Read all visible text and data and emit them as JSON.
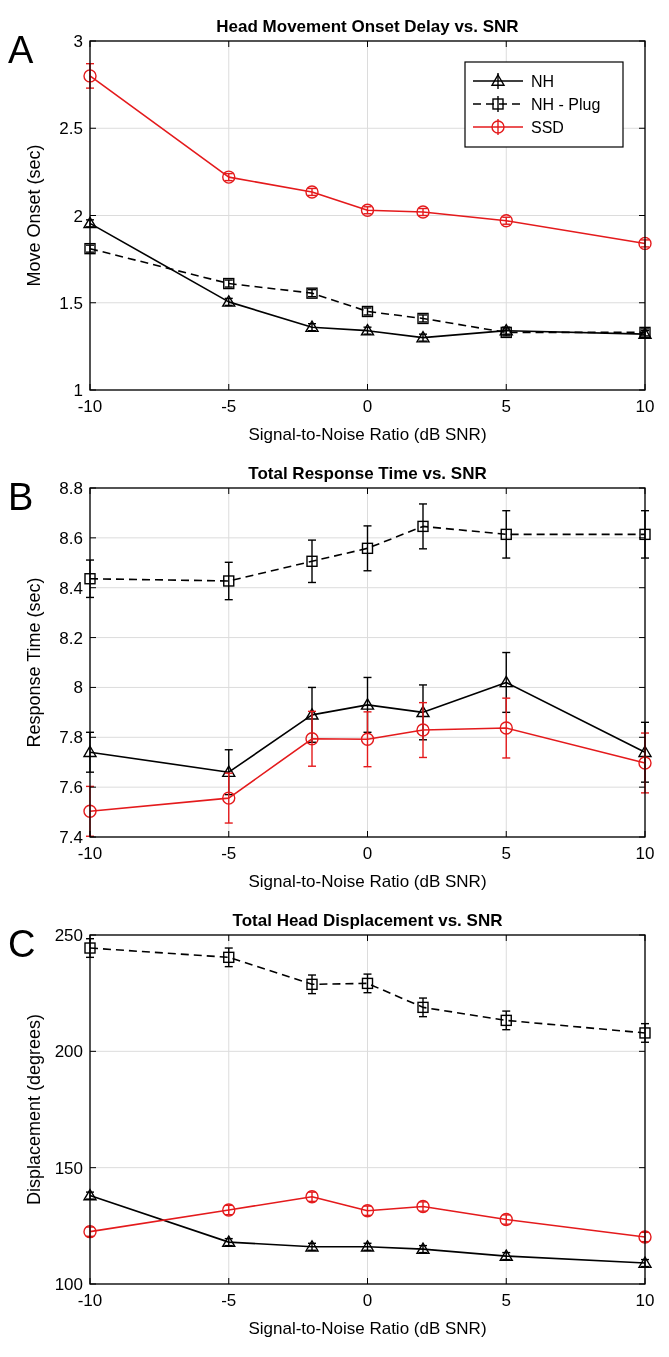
{
  "chart_data": [
    {
      "type": "line",
      "title": "Head Movement Onset Delay vs. SNR",
      "xlabel": "Signal-to-Noise Ratio (dB SNR)",
      "ylabel": "Move Onset (sec)",
      "annotations": [
        "A"
      ],
      "x": [
        -10,
        -5,
        -2,
        0,
        2,
        5,
        10
      ],
      "xlim": [
        -10,
        10
      ],
      "xticks": [
        -10,
        -5,
        0,
        5,
        10
      ],
      "ylim": [
        1,
        3
      ],
      "yticks": [
        1,
        1.5,
        2,
        2.5,
        3
      ],
      "grid": true,
      "legend": "top right",
      "series": [
        {
          "name": "NH",
          "color": "#000000",
          "marker": "triangle",
          "line_style": "solid",
          "values": [
            1.955,
            1.505,
            1.36,
            1.34,
            1.3,
            1.34,
            1.32
          ],
          "errors": [
            0.02,
            0.02,
            0.02,
            0.02,
            0.02,
            0.02,
            0.02
          ]
        },
        {
          "name": "NH - Plug",
          "color": "#000000",
          "marker": "square",
          "line_style": "dashed",
          "values": [
            1.81,
            1.61,
            1.555,
            1.45,
            1.41,
            1.33,
            1.33
          ],
          "errors": [
            0.02,
            0.02,
            0.02,
            0.02,
            0.02,
            0.02,
            0.02
          ]
        },
        {
          "name": "SSD",
          "color": "#e41a1c",
          "marker": "circle",
          "line_style": "solid",
          "values": [
            2.8,
            2.22,
            2.135,
            2.03,
            2.02,
            1.97,
            1.84
          ],
          "errors": [
            0.07,
            0.02,
            0.02,
            0.02,
            0.02,
            0.02,
            0.02
          ]
        }
      ]
    },
    {
      "type": "line",
      "title": "Total Response Time vs. SNR",
      "xlabel": "Signal-to-Noise Ratio (dB SNR)",
      "ylabel": "Response Time (sec)",
      "annotations": [
        "B"
      ],
      "x": [
        -10,
        -5,
        -2,
        0,
        2,
        5,
        10
      ],
      "xlim": [
        -10,
        10
      ],
      "xticks": [
        -10,
        -5,
        0,
        5,
        10
      ],
      "ylim": [
        7.4,
        8.8
      ],
      "yticks": [
        7.4,
        7.6,
        7.8,
        8,
        8.2,
        8.4,
        8.6,
        8.8
      ],
      "grid": true,
      "series": [
        {
          "color": "#000000",
          "marker": "triangle",
          "line_style": "solid",
          "values": [
            7.74,
            7.66,
            7.89,
            7.93,
            7.9,
            8.02,
            7.74
          ],
          "errors": [
            0.08,
            0.09,
            0.11,
            0.11,
            0.11,
            0.12,
            0.12
          ]
        },
        {
          "color": "#000000",
          "marker": "square",
          "line_style": "dashed",
          "values": [
            8.436,
            8.427,
            8.506,
            8.558,
            8.646,
            8.614,
            8.614
          ],
          "errors": [
            0.075,
            0.075,
            0.085,
            0.09,
            0.09,
            0.095,
            0.095
          ]
        },
        {
          "color": "#e41a1c",
          "marker": "circle",
          "line_style": "solid",
          "values": [
            7.503,
            7.556,
            7.794,
            7.792,
            7.829,
            7.837,
            7.697
          ],
          "errors": [
            0.1,
            0.1,
            0.11,
            0.11,
            0.11,
            0.12,
            0.12
          ]
        }
      ]
    },
    {
      "type": "line",
      "title": "Total Head Displacement vs. SNR",
      "xlabel": "Signal-to-Noise Ratio (dB SNR)",
      "ylabel": "Displacement (degrees)",
      "annotations": [
        "C"
      ],
      "x": [
        -10,
        -5,
        -2,
        0,
        2,
        5,
        10
      ],
      "xlim": [
        -10,
        10
      ],
      "xticks": [
        -10,
        -5,
        0,
        5,
        10
      ],
      "ylim": [
        100,
        250
      ],
      "yticks": [
        100,
        150,
        200,
        250
      ],
      "grid": true,
      "series": [
        {
          "color": "#000000",
          "marker": "triangle",
          "line_style": "solid",
          "values": [
            138,
            118,
            116,
            116,
            115,
            112,
            109
          ],
          "errors": [
            1.5,
            1.5,
            1.5,
            1.5,
            1.5,
            1.5,
            1.5
          ]
        },
        {
          "color": "#000000",
          "marker": "square",
          "line_style": "dashed",
          "values": [
            244.4,
            240.4,
            228.8,
            229.2,
            218.9,
            213.3,
            207.9
          ],
          "errors": [
            4,
            4,
            4,
            4,
            4,
            4,
            4
          ]
        },
        {
          "color": "#e41a1c",
          "marker": "circle",
          "line_style": "solid",
          "values": [
            122.5,
            131.8,
            137.5,
            131.5,
            133.3,
            127.7,
            120.2
          ],
          "errors": [
            2,
            2,
            2,
            2,
            2,
            2,
            2
          ]
        }
      ]
    }
  ]
}
